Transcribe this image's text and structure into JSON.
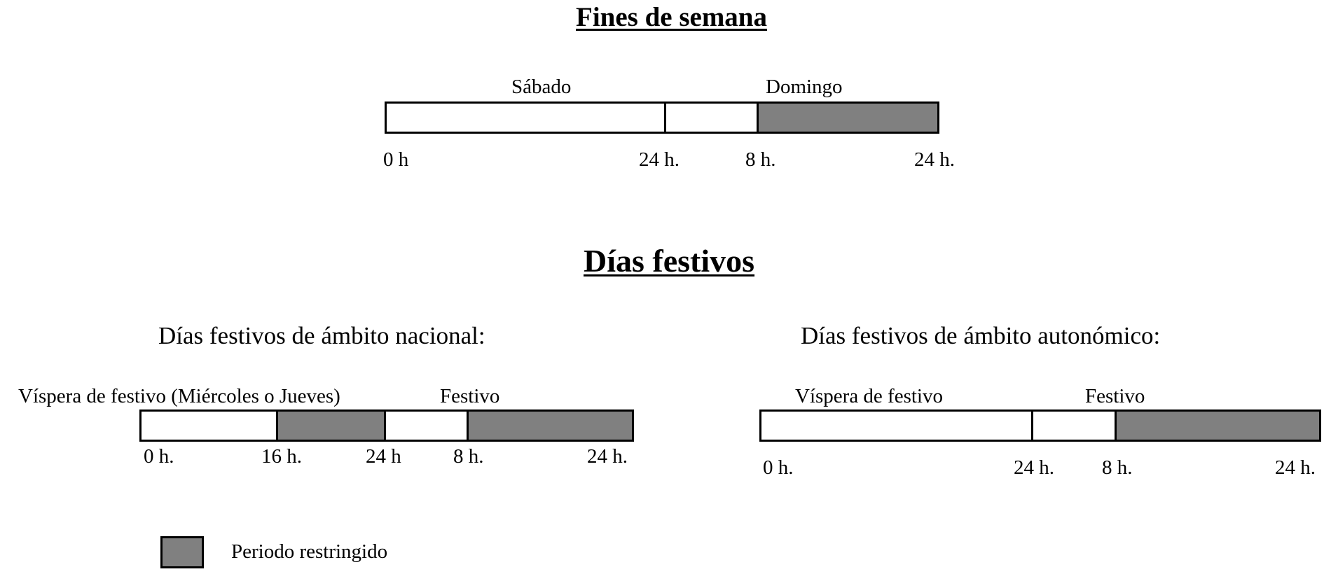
{
  "weekend": {
    "title": "Fines de semana",
    "day1": "Sábado",
    "day2": "Domingo",
    "ticks": [
      "0 h",
      "24 h.",
      "8 h.",
      "24 h."
    ],
    "segments": [
      {
        "label": "Sábado 0 h – 24 h",
        "restricted": false
      },
      {
        "label": "Domingo 0 h – 8 h",
        "restricted": false
      },
      {
        "label": "Domingo 8 h – 24 h",
        "restricted": true
      }
    ]
  },
  "holidays": {
    "title": "Días festivos",
    "national": {
      "title": "Días festivos de ámbito nacional:",
      "eve_label": "Víspera de festivo (Miércoles o Jueves)",
      "holiday_label": "Festivo",
      "ticks": [
        "0 h.",
        "16 h.",
        "24 h",
        "8 h.",
        "24 h."
      ],
      "segments": [
        {
          "label": "Víspera 0 h – 16 h",
          "restricted": false
        },
        {
          "label": "Víspera 16 h – 24 h",
          "restricted": true
        },
        {
          "label": "Festivo 0 h – 8 h",
          "restricted": false
        },
        {
          "label": "Festivo 8 h – 24 h",
          "restricted": true
        }
      ]
    },
    "regional": {
      "title": "Días festivos de ámbito autonómico:",
      "eve_label": "Víspera de festivo",
      "holiday_label": "Festivo",
      "ticks": [
        "0 h.",
        "24 h.",
        "8 h.",
        "24 h."
      ],
      "segments": [
        {
          "label": "Víspera 0 h – 24 h",
          "restricted": false
        },
        {
          "label": "Festivo 0 h – 8 h",
          "restricted": false
        },
        {
          "label": "Festivo 8 h – 24 h",
          "restricted": true
        }
      ]
    }
  },
  "legend": {
    "label": "Periodo restringido",
    "color": "#808080"
  }
}
